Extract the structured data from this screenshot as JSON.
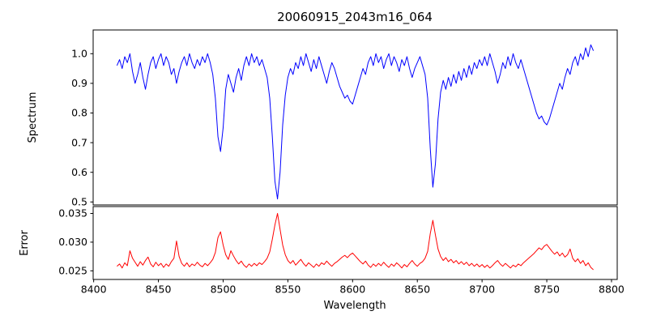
{
  "figure": {
    "title": "20060915_2043m16_064",
    "background": "#ffffff"
  },
  "chart_data": [
    {
      "type": "line",
      "series_name": "spectrum",
      "title": "20060915_2043m16_064",
      "ylabel": "Spectrum",
      "line_color": "#0000ff",
      "grid": false,
      "xlim": [
        8399.6,
        8804.4
      ],
      "ylim": [
        0.49,
        1.08
      ],
      "yticks": [
        1.0,
        0.9,
        0.8,
        0.7,
        0.6,
        0.5
      ],
      "ytick_labels": [
        "1.0",
        "0.9",
        "0.8",
        "0.7",
        "0.6",
        "0.5"
      ],
      "xticks": [
        8400,
        8450,
        8500,
        8550,
        8600,
        8650,
        8700,
        8750,
        8800
      ],
      "show_x_tick_labels": false,
      "x_start": 8418,
      "x_step": 2,
      "values": [
        0.96,
        0.98,
        0.95,
        0.99,
        0.97,
        1.0,
        0.94,
        0.9,
        0.93,
        0.97,
        0.92,
        0.88,
        0.93,
        0.97,
        0.99,
        0.95,
        0.98,
        1.0,
        0.96,
        0.99,
        0.97,
        0.93,
        0.95,
        0.9,
        0.94,
        0.97,
        0.99,
        0.96,
        1.0,
        0.97,
        0.95,
        0.98,
        0.96,
        0.99,
        0.97,
        1.0,
        0.97,
        0.93,
        0.85,
        0.72,
        0.67,
        0.75,
        0.88,
        0.93,
        0.9,
        0.87,
        0.92,
        0.95,
        0.91,
        0.96,
        0.99,
        0.96,
        1.0,
        0.97,
        0.99,
        0.96,
        0.98,
        0.95,
        0.92,
        0.85,
        0.72,
        0.57,
        0.51,
        0.6,
        0.76,
        0.86,
        0.92,
        0.95,
        0.93,
        0.97,
        0.95,
        0.99,
        0.96,
        1.0,
        0.97,
        0.94,
        0.98,
        0.95,
        0.99,
        0.96,
        0.93,
        0.9,
        0.94,
        0.97,
        0.95,
        0.92,
        0.89,
        0.87,
        0.85,
        0.86,
        0.84,
        0.83,
        0.86,
        0.89,
        0.92,
        0.95,
        0.93,
        0.97,
        0.99,
        0.96,
        1.0,
        0.97,
        0.99,
        0.95,
        0.98,
        1.0,
        0.96,
        0.99,
        0.97,
        0.94,
        0.98,
        0.96,
        0.99,
        0.95,
        0.92,
        0.95,
        0.97,
        0.99,
        0.96,
        0.93,
        0.85,
        0.68,
        0.55,
        0.63,
        0.78,
        0.87,
        0.91,
        0.88,
        0.92,
        0.89,
        0.93,
        0.9,
        0.94,
        0.91,
        0.95,
        0.92,
        0.96,
        0.93,
        0.97,
        0.95,
        0.98,
        0.96,
        0.99,
        0.96,
        1.0,
        0.97,
        0.94,
        0.9,
        0.93,
        0.97,
        0.95,
        0.99,
        0.96,
        1.0,
        0.97,
        0.95,
        0.98,
        0.95,
        0.92,
        0.89,
        0.86,
        0.83,
        0.8,
        0.78,
        0.79,
        0.77,
        0.76,
        0.78,
        0.81,
        0.84,
        0.87,
        0.9,
        0.88,
        0.92,
        0.95,
        0.93,
        0.97,
        0.99,
        0.96,
        1.0,
        0.98,
        1.02,
        0.99,
        1.03,
        1.01
      ]
    },
    {
      "type": "line",
      "series_name": "error",
      "ylabel": "Error",
      "xlabel": "Wavelength",
      "line_color": "#ff0000",
      "grid": false,
      "xlim": [
        8399.6,
        8804.4
      ],
      "ylim": [
        0.0235,
        0.0362
      ],
      "yticks": [
        0.035,
        0.03,
        0.025
      ],
      "ytick_labels": [
        "0.035",
        "0.030",
        "0.025"
      ],
      "xticks": [
        8400,
        8450,
        8500,
        8550,
        8600,
        8650,
        8700,
        8750,
        8800
      ],
      "xtick_labels": [
        "8400",
        "8450",
        "8500",
        "8550",
        "8600",
        "8650",
        "8700",
        "8750",
        "8800"
      ],
      "show_x_tick_labels": true,
      "x_start": 8418,
      "x_step": 2,
      "values": [
        0.0258,
        0.0262,
        0.0255,
        0.0264,
        0.0259,
        0.0285,
        0.0272,
        0.0265,
        0.0258,
        0.0266,
        0.026,
        0.0268,
        0.0274,
        0.0262,
        0.0257,
        0.0265,
        0.0259,
        0.0263,
        0.0256,
        0.0262,
        0.0258,
        0.0266,
        0.0272,
        0.0302,
        0.0275,
        0.0263,
        0.0258,
        0.0264,
        0.0257,
        0.0262,
        0.0259,
        0.0265,
        0.026,
        0.0257,
        0.0263,
        0.0259,
        0.0264,
        0.027,
        0.0282,
        0.0308,
        0.0318,
        0.0295,
        0.0278,
        0.027,
        0.0285,
        0.0276,
        0.0268,
        0.0262,
        0.0267,
        0.026,
        0.0256,
        0.0262,
        0.0258,
        0.0263,
        0.0259,
        0.0264,
        0.0261,
        0.0266,
        0.0272,
        0.0283,
        0.0305,
        0.033,
        0.035,
        0.0322,
        0.0295,
        0.0278,
        0.0268,
        0.0263,
        0.0268,
        0.026,
        0.0265,
        0.027,
        0.0263,
        0.0258,
        0.0264,
        0.026,
        0.0256,
        0.0262,
        0.0258,
        0.0264,
        0.0261,
        0.0267,
        0.0262,
        0.0258,
        0.0263,
        0.0266,
        0.027,
        0.0274,
        0.0277,
        0.0273,
        0.0278,
        0.0281,
        0.0276,
        0.0271,
        0.0266,
        0.0262,
        0.0267,
        0.026,
        0.0256,
        0.0262,
        0.0258,
        0.0263,
        0.0259,
        0.0265,
        0.026,
        0.0256,
        0.0262,
        0.0258,
        0.0264,
        0.026,
        0.0255,
        0.0261,
        0.0257,
        0.0263,
        0.0268,
        0.0262,
        0.0258,
        0.0263,
        0.0266,
        0.0272,
        0.0284,
        0.0315,
        0.0338,
        0.0312,
        0.0288,
        0.0275,
        0.0268,
        0.0273,
        0.0266,
        0.027,
        0.0264,
        0.0268,
        0.0262,
        0.0266,
        0.0261,
        0.0265,
        0.0259,
        0.0263,
        0.0258,
        0.0262,
        0.0257,
        0.0261,
        0.0256,
        0.026,
        0.0255,
        0.0259,
        0.0264,
        0.0268,
        0.0262,
        0.0258,
        0.0263,
        0.0259,
        0.0255,
        0.026,
        0.0257,
        0.0262,
        0.0259,
        0.0264,
        0.0268,
        0.0272,
        0.0276,
        0.028,
        0.0285,
        0.029,
        0.0287,
        0.0293,
        0.0296,
        0.029,
        0.0284,
        0.0279,
        0.0283,
        0.0276,
        0.0281,
        0.0274,
        0.0278,
        0.0288,
        0.0272,
        0.0266,
        0.0271,
        0.0263,
        0.0268,
        0.0259,
        0.0264,
        0.0256,
        0.0252
      ]
    }
  ]
}
